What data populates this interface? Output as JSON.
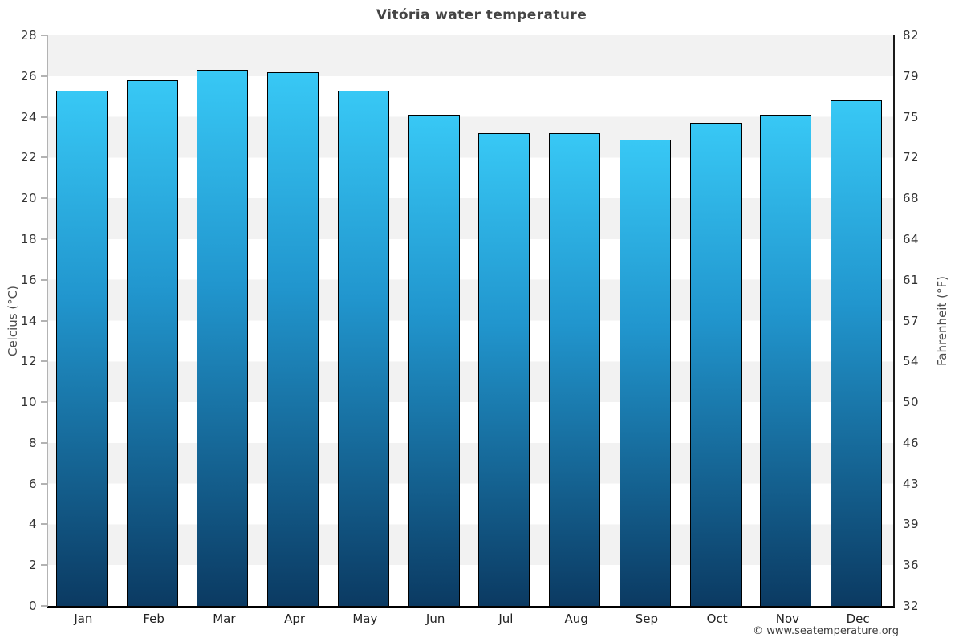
{
  "chart_data": {
    "type": "bar",
    "title": "Vitória water temperature",
    "categories": [
      "Jan",
      "Feb",
      "Mar",
      "Apr",
      "May",
      "Jun",
      "Jul",
      "Aug",
      "Sep",
      "Oct",
      "Nov",
      "Dec"
    ],
    "values": [
      25.3,
      25.8,
      26.3,
      26.2,
      25.3,
      24.1,
      23.2,
      23.2,
      22.9,
      23.7,
      24.1,
      24.8
    ],
    "xlabel": "",
    "ylabel_left": "Celcius (°C)",
    "ylabel_right": "Fahrenheit (°F)",
    "ylim": [
      0,
      28
    ],
    "ytick_step_celsius": 2,
    "yticks_celsius": [
      28,
      26,
      24,
      22,
      20,
      18,
      16,
      14,
      12,
      10,
      8,
      6,
      4,
      2,
      0
    ],
    "yticks_fahrenheit": [
      82,
      79,
      75,
      72,
      68,
      64,
      61,
      57,
      54,
      50,
      46,
      43,
      39,
      36,
      32
    ],
    "grid": "horizontal striped bands every 2°C, alternating gray/white from top",
    "legend": "none"
  },
  "footer": {
    "copyright": "© www.seatemperature.org"
  },
  "colors": {
    "title": "#444444",
    "tick_label": "#333333",
    "month_label": "#222222",
    "axis_title": "#4d4d4d",
    "copyright": "#3d3d3d",
    "stripe_gray": "#f2f2f2",
    "stripe_white": "#ffffff",
    "bar_gradient_top": "#38c8f5",
    "bar_gradient_mid": "#2196ce",
    "bar_gradient_bottom": "#0b3a62",
    "bar_border": "#000000",
    "axis_left_line": "#b3b3b3",
    "axis_right_line": "#1a1a1a",
    "axis_bottom_line": "#000000"
  }
}
